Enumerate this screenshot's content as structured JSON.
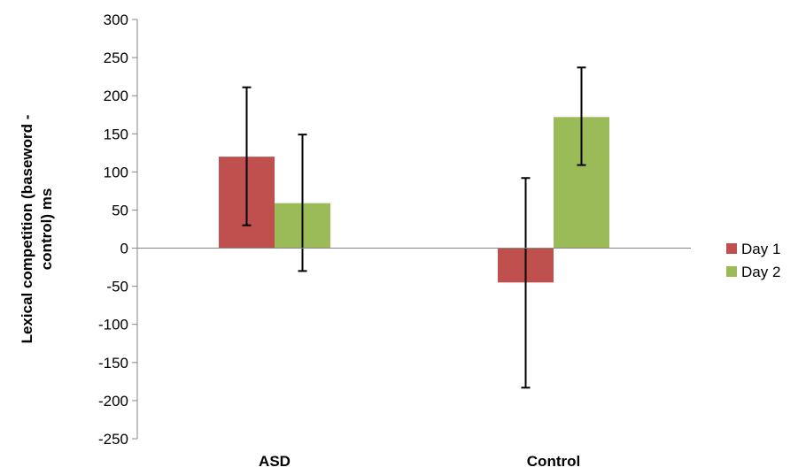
{
  "chart_data": {
    "type": "bar",
    "categories": [
      "ASD",
      "Control"
    ],
    "series": [
      {
        "name": "Day 1",
        "color": "#C0504D",
        "values": [
          120,
          -45
        ],
        "error_low": [
          30,
          -183
        ],
        "error_high": [
          211,
          92
        ]
      },
      {
        "name": "Day 2",
        "color": "#9BBB59",
        "values": [
          59,
          172
        ],
        "error_low": [
          -30,
          109
        ],
        "error_high": [
          149,
          237
        ]
      }
    ],
    "title": "",
    "xlabel": "",
    "ylabel_lines": [
      "Lexical competition (baseword -",
      "control) ms"
    ],
    "ylim": [
      -250,
      300
    ],
    "yticks": [
      300,
      250,
      200,
      150,
      100,
      50,
      0,
      -50,
      -100,
      -150,
      -200,
      -250
    ],
    "ytick_labels": [
      "300",
      "250",
      "200",
      "150",
      "100",
      "50",
      "0",
      "-50",
      "-100",
      "-150",
      "-200",
      "-250"
    ],
    "grid": false,
    "legend_position": "right"
  }
}
